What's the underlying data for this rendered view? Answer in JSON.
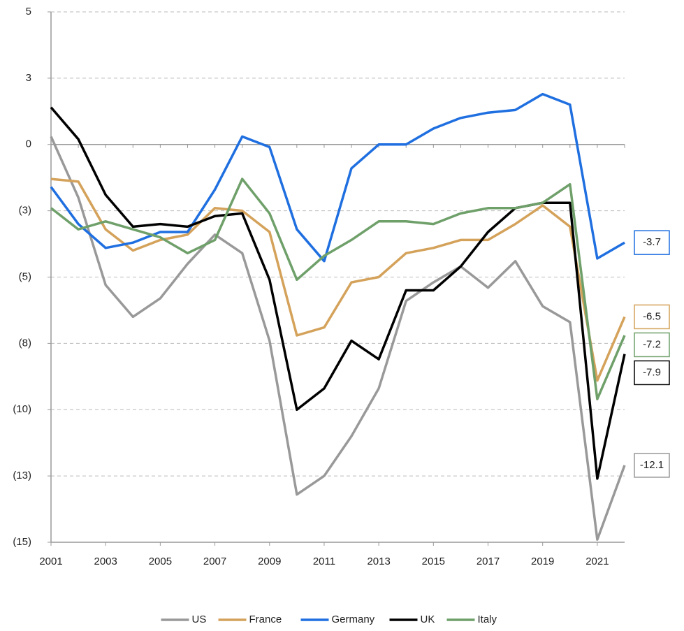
{
  "chart_data": {
    "type": "line",
    "x": [
      2001,
      2002,
      2003,
      2004,
      2005,
      2006,
      2007,
      2008,
      2009,
      2010,
      2011,
      2012,
      2013,
      2014,
      2015,
      2016,
      2017,
      2018,
      2019,
      2020,
      2021,
      2022
    ],
    "xlim": [
      2001,
      2022
    ],
    "xticks": [
      2001,
      2003,
      2005,
      2007,
      2009,
      2011,
      2013,
      2015,
      2017,
      2019,
      2021
    ],
    "ylim": [
      -15,
      5
    ],
    "yticks": [
      {
        "value": 5,
        "label": "5"
      },
      {
        "value": 2.5,
        "label": "3"
      },
      0,
      {
        "value": -2.5,
        "label": "(3)"
      },
      {
        "value": -5,
        "label": "(5)"
      },
      {
        "value": -7.5,
        "label": "(8)"
      },
      {
        "value": -10,
        "label": "(10)"
      },
      {
        "value": -12.5,
        "label": "(13)"
      },
      {
        "value": -15,
        "label": "(15)"
      }
    ],
    "grid": true,
    "legend": "bottom",
    "series": [
      {
        "name": "US",
        "color": "#999999",
        "values": [
          0.3,
          -2,
          -5.3,
          -6.5,
          -5.8,
          -4.5,
          -3.4,
          -4.1,
          -7.4,
          -13.2,
          -12.5,
          -11,
          -9.2,
          -5.9,
          -5.2,
          -4.6,
          -5.4,
          -4.4,
          -6.1,
          -6.7,
          -14.9,
          -12.1
        ]
      },
      {
        "name": "France",
        "color": "#d4a25a",
        "values": [
          -1.3,
          -1.4,
          -3.2,
          -4,
          -3.6,
          -3.4,
          -2.4,
          -2.5,
          -3.3,
          -7.2,
          -6.9,
          -5.2,
          -5,
          -4.1,
          -3.9,
          -3.6,
          -3.6,
          -3,
          -2.3,
          -3.1,
          -8.9,
          -6.5
        ]
      },
      {
        "name": "Germany",
        "color": "#1f6fe0",
        "values": [
          -1.6,
          -3,
          -3.9,
          -3.7,
          -3.3,
          -3.3,
          -1.7,
          0.3,
          -0.1,
          -3.2,
          -4.4,
          -0.9,
          0,
          0,
          0.6,
          1.0,
          1.2,
          1.3,
          1.9,
          1.5,
          -4.3,
          -3.7
        ]
      },
      {
        "name": "UK",
        "color": "#000000",
        "values": [
          1.4,
          0.2,
          -1.9,
          -3.1,
          -3.0,
          -3.1,
          -2.7,
          -2.6,
          -5.1,
          -10,
          -9.2,
          -7.4,
          -8.1,
          -5.5,
          -5.5,
          -4.6,
          -3.3,
          -2.4,
          -2.2,
          -2.2,
          -12.6,
          -7.9
        ]
      },
      {
        "name": "Italy",
        "color": "#6fa06a",
        "values": [
          -2.4,
          -3.2,
          -2.9,
          -3.2,
          -3.5,
          -4.1,
          -3.6,
          -1.3,
          -2.6,
          -5.1,
          -4.2,
          -3.6,
          -2.9,
          -2.9,
          -3,
          -2.6,
          -2.4,
          -2.4,
          -2.2,
          -1.5,
          -9.6,
          -7.2
        ]
      }
    ]
  }
}
